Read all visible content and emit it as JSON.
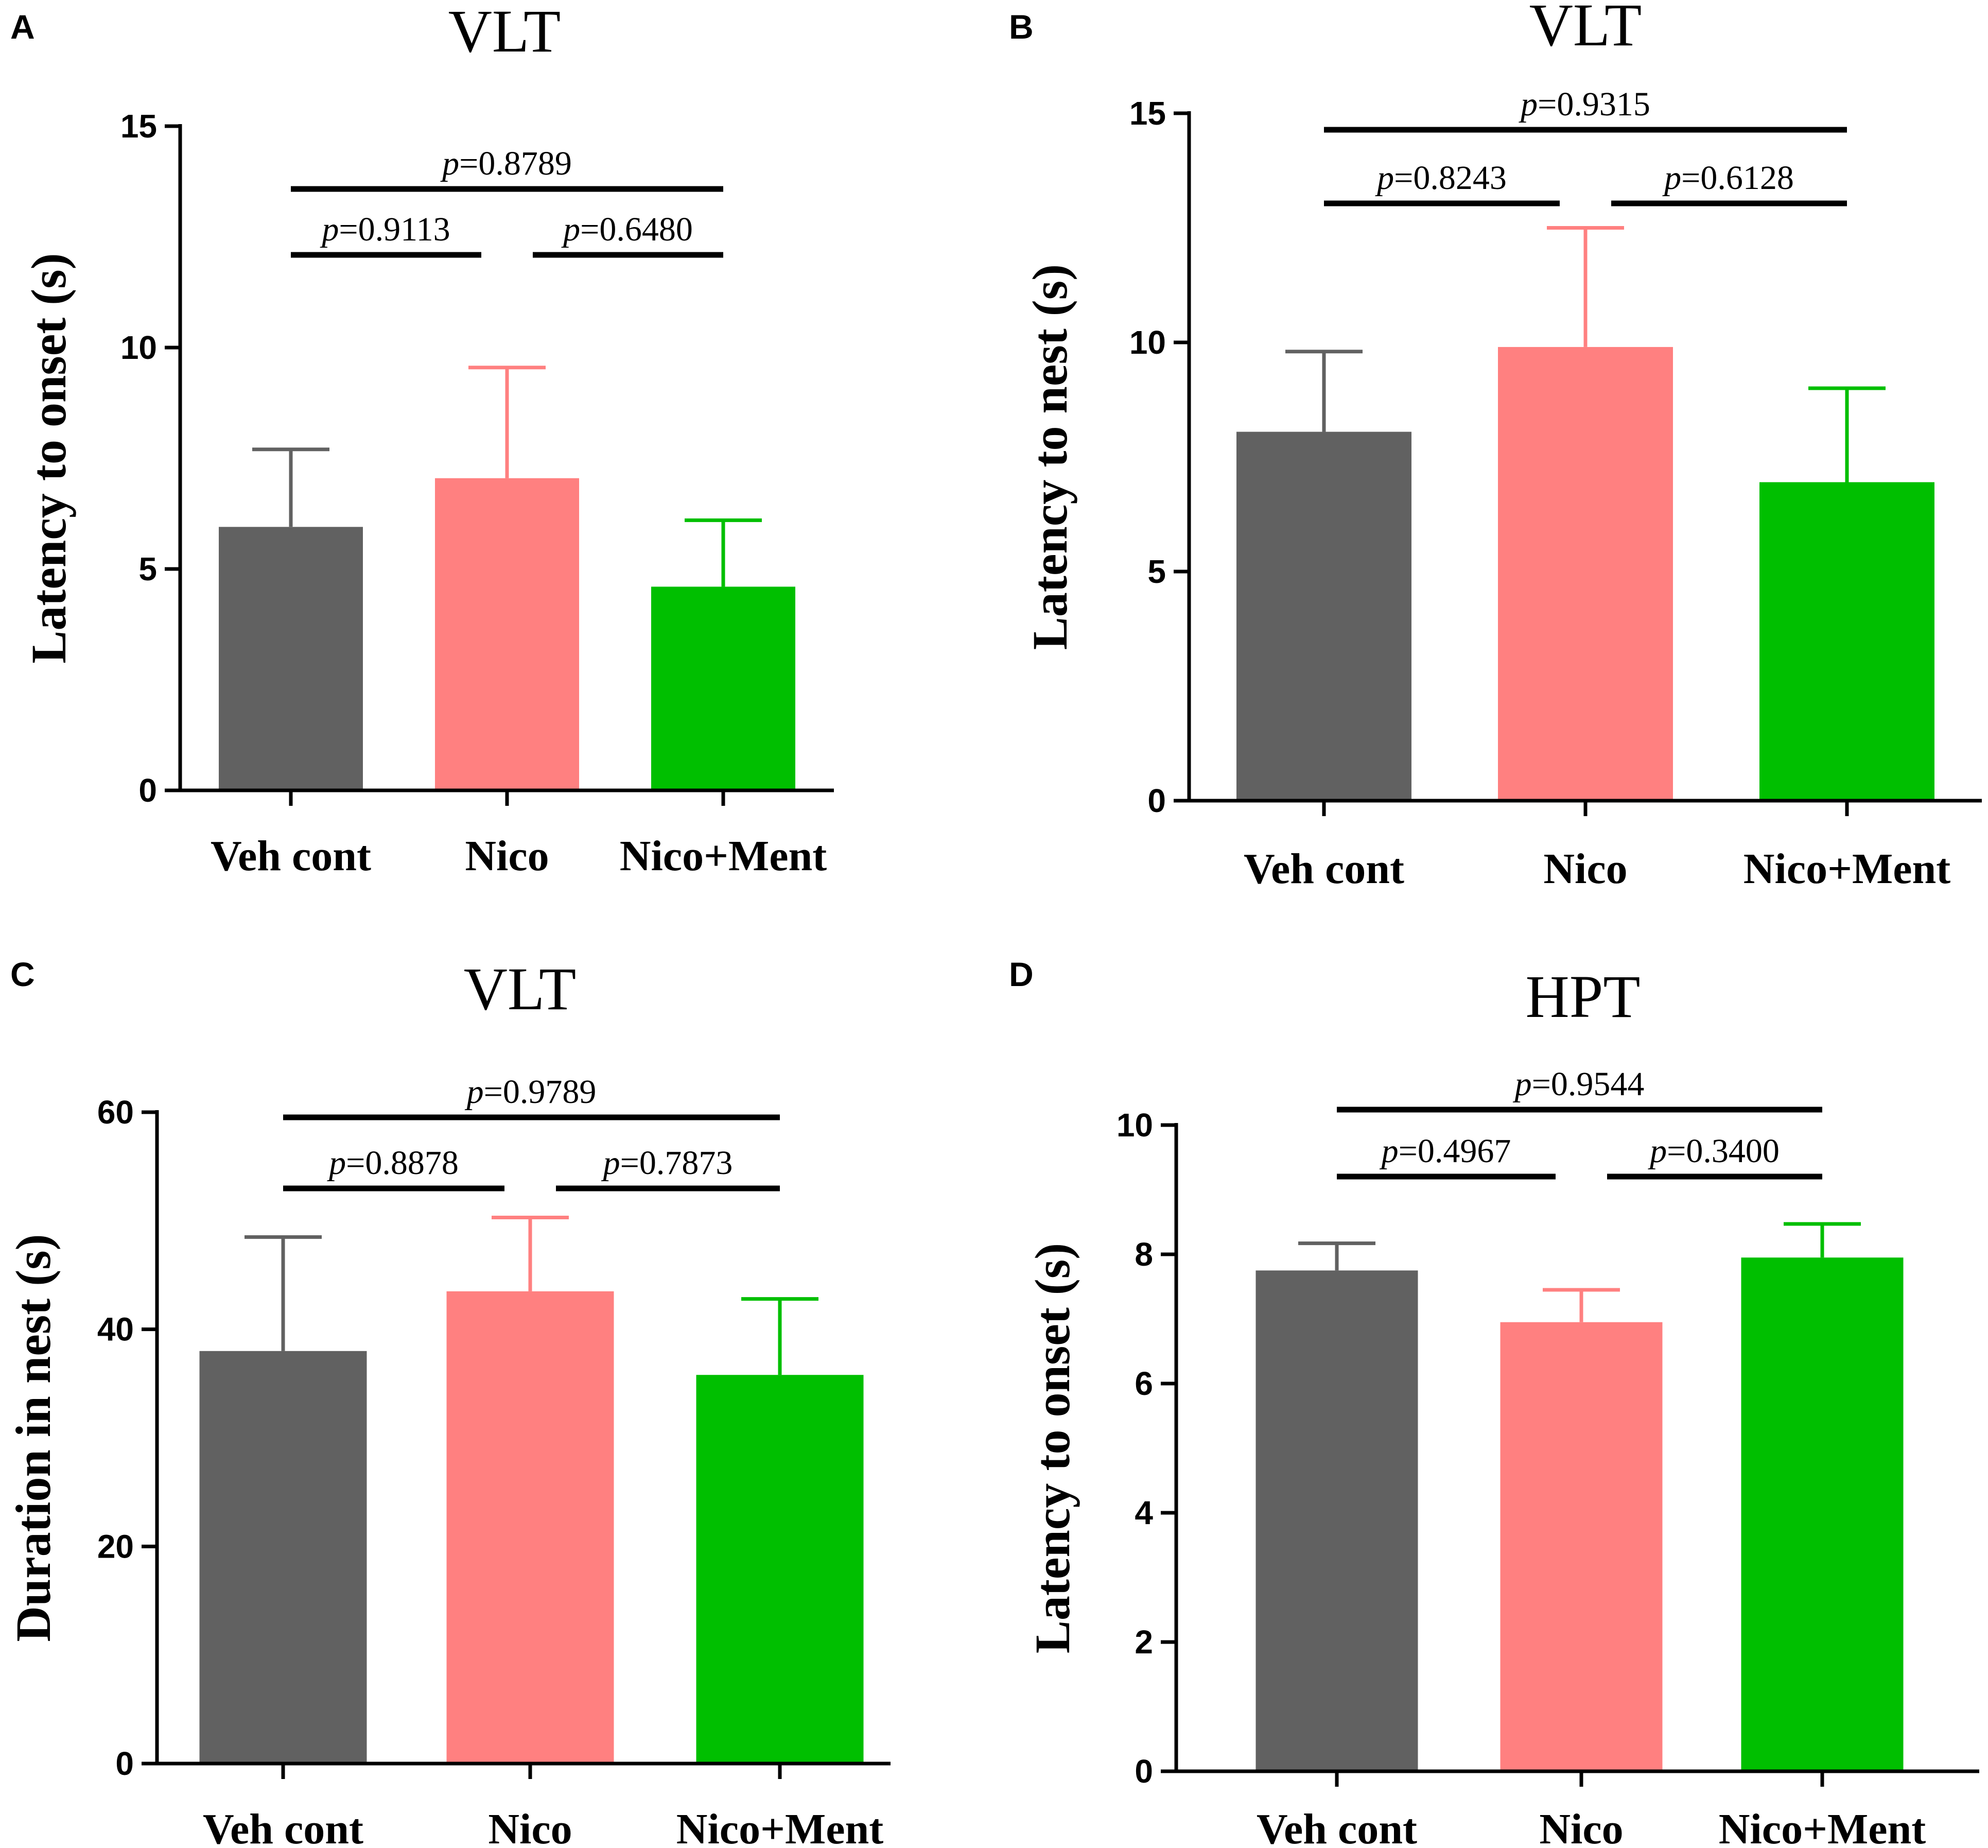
{
  "colors": {
    "veh_cont": "#616161",
    "nico": "#ff8080",
    "nico_ment": "#00bf00",
    "axis": "#000000"
  },
  "chart_data": [
    {
      "panel": "A",
      "type": "bar",
      "title": "VLT",
      "ylabel": "Latency to onset (s)",
      "xlabel": "",
      "categories": [
        "Veh cont",
        "Nico",
        "Nico+Ment"
      ],
      "values": [
        5.95,
        7.05,
        4.6
      ],
      "errors": [
        1.75,
        2.5,
        1.5
      ],
      "ylim": [
        0,
        15
      ],
      "yticks": [
        0,
        5,
        10,
        15
      ],
      "ytick_labels": [
        "0",
        "5",
        "10",
        "15"
      ],
      "comparisons": [
        {
          "from": 0,
          "to": 2,
          "p_label": "p",
          "p_value": "=0.8789",
          "level": 2
        },
        {
          "from": 0,
          "to": 1,
          "p_label": "p",
          "p_value": "=0.9113",
          "level": 1
        },
        {
          "from": 1,
          "to": 2,
          "p_label": "p",
          "p_value": "=0.6480",
          "level": 1
        }
      ]
    },
    {
      "panel": "B",
      "type": "bar",
      "title": "VLT",
      "ylabel": "Latency to nest (s)",
      "xlabel": "",
      "categories": [
        "Veh cont",
        "Nico",
        "Nico+Ment"
      ],
      "values": [
        8.05,
        9.9,
        6.95
      ],
      "errors": [
        1.75,
        2.6,
        2.05
      ],
      "ylim": [
        0,
        15
      ],
      "yticks": [
        0,
        5,
        10,
        15
      ],
      "ytick_labels": [
        "0",
        "5",
        "10",
        "15"
      ],
      "comparisons": [
        {
          "from": 0,
          "to": 2,
          "p_label": "p",
          "p_value": "=0.9315",
          "level": 2
        },
        {
          "from": 0,
          "to": 1,
          "p_label": "p",
          "p_value": "=0.8243",
          "level": 1
        },
        {
          "from": 1,
          "to": 2,
          "p_label": "p",
          "p_value": "=0.6128",
          "level": 1
        }
      ]
    },
    {
      "panel": "C",
      "type": "bar",
      "title": "VLT",
      "ylabel": "Duration in nest (s)",
      "xlabel": "",
      "categories": [
        "Veh cont",
        "Nico",
        "Nico+Ment"
      ],
      "values": [
        38.0,
        43.5,
        35.8
      ],
      "errors": [
        10.5,
        6.8,
        7.0
      ],
      "ylim": [
        0,
        60
      ],
      "yticks": [
        0,
        20,
        40,
        60
      ],
      "ytick_labels": [
        "0",
        "20",
        "40",
        "60"
      ],
      "comparisons": [
        {
          "from": 0,
          "to": 2,
          "p_label": "p",
          "p_value": "=0.9789",
          "level": 2
        },
        {
          "from": 0,
          "to": 1,
          "p_label": "p",
          "p_value": "=0.8878",
          "level": 1
        },
        {
          "from": 1,
          "to": 2,
          "p_label": "p",
          "p_value": "=0.7873",
          "level": 1
        }
      ]
    },
    {
      "panel": "D",
      "type": "bar",
      "title": "HPT",
      "ylabel": "Latency to onset (s)",
      "xlabel": "",
      "categories": [
        "Veh cont",
        "Nico",
        "Nico+Ment"
      ],
      "values": [
        7.75,
        6.95,
        7.95
      ],
      "errors": [
        0.42,
        0.5,
        0.52
      ],
      "ylim": [
        0,
        10
      ],
      "yticks": [
        0,
        2,
        4,
        6,
        8,
        10
      ],
      "ytick_labels": [
        "0",
        "2",
        "4",
        "6",
        "8",
        "10"
      ],
      "comparisons": [
        {
          "from": 0,
          "to": 2,
          "p_label": "p",
          "p_value": "=0.9544",
          "level": 2
        },
        {
          "from": 0,
          "to": 1,
          "p_label": "p",
          "p_value": "=0.4967",
          "level": 1
        },
        {
          "from": 1,
          "to": 2,
          "p_label": "p",
          "p_value": "=0.3400",
          "level": 1
        }
      ]
    }
  ]
}
